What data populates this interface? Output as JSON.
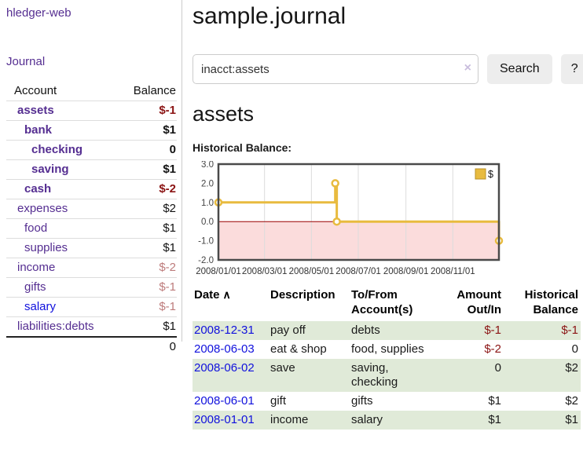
{
  "colors": {
    "link_purple": "#552e91",
    "link_blue": "#1010dd",
    "negative": "#8b1414",
    "negative_dim": "#bd7b7b",
    "row_green": "#e0ead8"
  },
  "sidebar": {
    "brand": "hledger-web",
    "journal_link": "Journal",
    "accounts_table": {
      "headers": [
        "Account",
        "Balance"
      ],
      "rows": [
        {
          "account": "assets",
          "balance": "$-1",
          "indent": 1,
          "bold": true,
          "balance_class": "neg"
        },
        {
          "account": "bank",
          "balance": "$1",
          "indent": 2,
          "bold": true,
          "balance_class": "pos"
        },
        {
          "account": "checking",
          "balance": "0",
          "indent": 3,
          "bold": true,
          "balance_class": "pos"
        },
        {
          "account": "saving",
          "balance": "$1",
          "indent": 3,
          "bold": true,
          "balance_class": "pos"
        },
        {
          "account": "cash",
          "balance": "$-2",
          "indent": 2,
          "bold": true,
          "balance_class": "neg"
        },
        {
          "account": "expenses",
          "balance": "$2",
          "indent": 1,
          "bold": false,
          "balance_class": "pos"
        },
        {
          "account": "food",
          "balance": "$1",
          "indent": 2,
          "bold": false,
          "balance_class": "pos"
        },
        {
          "account": "supplies",
          "balance": "$1",
          "indent": 2,
          "bold": false,
          "balance_class": "pos"
        },
        {
          "account": "income",
          "balance": "$-2",
          "indent": 1,
          "bold": false,
          "balance_class": "neg-dim"
        },
        {
          "account": "gifts",
          "balance": "$-1",
          "indent": 2,
          "bold": false,
          "balance_class": "neg-dim"
        },
        {
          "account": "salary",
          "balance": "$-1",
          "indent": 2,
          "bold": false,
          "balance_class": "neg-dim",
          "link_color": "blue"
        },
        {
          "account": "liabilities:debts",
          "balance": "$1",
          "indent": 1,
          "bold": false,
          "balance_class": "pos"
        }
      ],
      "total": "0"
    }
  },
  "main": {
    "title": "sample.journal",
    "search": {
      "value": "inacct:assets",
      "clear_icon": "×",
      "search_button": "Search",
      "help_button": "?"
    },
    "account_heading": "assets",
    "chart_label": "Historical Balance:"
  },
  "chart_data": {
    "type": "line",
    "step": true,
    "title": "Historical Balance",
    "legend": "$",
    "legend_position": "top-right",
    "series": [
      {
        "name": "$",
        "points": [
          {
            "date": "2008-01-01",
            "value": 1
          },
          {
            "date": "2008-06-01",
            "value": 2
          },
          {
            "date": "2008-06-03",
            "value": 0
          },
          {
            "date": "2008-12-31",
            "value": -1
          }
        ]
      }
    ],
    "xrange": [
      "2008-01-01",
      "2008-12-31"
    ],
    "ylim": [
      -2,
      3
    ],
    "yticks": [
      "3.0",
      "2.0",
      "1.0",
      "0.0",
      "-1.0",
      "-2.0"
    ],
    "ytick_values": [
      3,
      2,
      1,
      0,
      -1,
      -2
    ],
    "xticks": [
      {
        "label": "2008/01/01",
        "date": "2008-01-01"
      },
      {
        "label": "2008/03/01",
        "date": "2008-03-01"
      },
      {
        "label": "2008/05/01",
        "date": "2008-05-01"
      },
      {
        "label": "2008/07/01",
        "date": "2008-07-01"
      },
      {
        "label": "2008/09/01",
        "date": "2008-09-01"
      },
      {
        "label": "2008/11/01",
        "date": "2008-11-01"
      }
    ],
    "grid": true,
    "line_color": "#e8bb3f",
    "marker_fill": "#ffffff",
    "legend_swatch_border": "#b8922a",
    "negative_fill": "#fbdcdc",
    "zero_line_color": "#990000",
    "border_color": "#4a4a4a",
    "grid_color": "#dcdcdc",
    "axis_text_color": "#444444"
  },
  "transactions": {
    "headers": [
      "Date",
      "Description",
      "To/From Account(s)",
      "Amount Out/In",
      "Historical Balance"
    ],
    "sort_icon": "∧",
    "rows": [
      {
        "date": "2008-12-31",
        "description": "pay off",
        "accounts": "debts",
        "amount": "$-1",
        "amount_neg": true,
        "balance": "$-1",
        "balance_neg": true,
        "highlight": true
      },
      {
        "date": "2008-06-03",
        "description": "eat & shop",
        "accounts": "food, supplies",
        "amount": "$-2",
        "amount_neg": true,
        "balance": "0",
        "balance_neg": false,
        "highlight": false
      },
      {
        "date": "2008-06-02",
        "description": "save",
        "accounts": "saving, checking",
        "amount": "0",
        "amount_neg": false,
        "balance": "$2",
        "balance_neg": false,
        "highlight": true
      },
      {
        "date": "2008-06-01",
        "description": "gift",
        "accounts": "gifts",
        "amount": "$1",
        "amount_neg": false,
        "balance": "$2",
        "balance_neg": false,
        "highlight": false
      },
      {
        "date": "2008-01-01",
        "description": "income",
        "accounts": "salary",
        "amount": "$1",
        "amount_neg": false,
        "balance": "$1",
        "balance_neg": false,
        "highlight": true
      }
    ]
  }
}
